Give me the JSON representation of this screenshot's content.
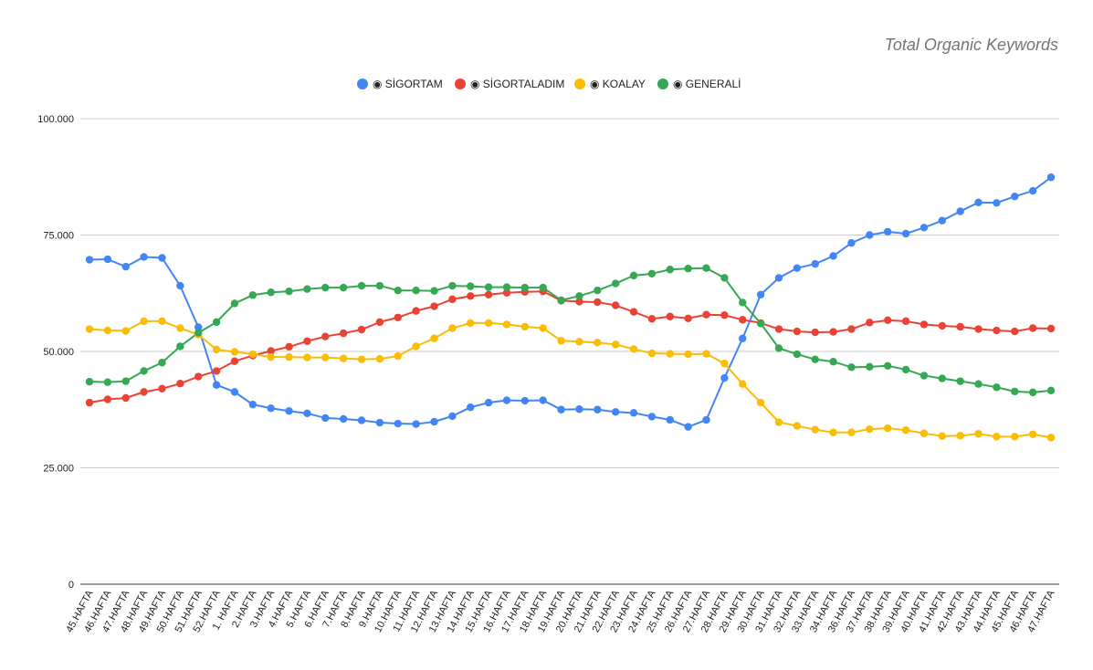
{
  "chart_data": {
    "type": "line",
    "title": "Total Organic Keywords",
    "xlabel": "",
    "ylabel": "",
    "ylim": [
      0,
      100000
    ],
    "y_ticks": [
      {
        "value": 0,
        "label": "0"
      },
      {
        "value": 25000,
        "label": "25.000"
      },
      {
        "value": 50000,
        "label": "50.000"
      },
      {
        "value": 75000,
        "label": "75.000"
      },
      {
        "value": 100000,
        "label": "100.000"
      }
    ],
    "grid": true,
    "legend_position": "top",
    "categories": [
      "45.HAFTA",
      "46.HAFTA",
      "47.HAFTA",
      "48.HAFTA",
      "49.HAFTA",
      "50.HAFTA",
      "51.HAFTA",
      "52.HAFTA",
      "1. HAFTA",
      "2.HAFTA",
      "3.HAFTA",
      "4.HAFTA",
      "5.HAFTA",
      "6.HAFTA",
      "7.HAFTA",
      "8.HAFTA",
      "9.HAFTA",
      "10.HAFTA",
      "11.HAFTA",
      "12.HAFTA",
      "13.HAFTA",
      "14.HAFTA",
      "15.HAFTA",
      "16.HAFTA",
      "17.HAFTA",
      "18.HAFTA",
      "19.HAFTA",
      "20.HAFTA",
      "21.HAFTA",
      "22.HAFTA",
      "23.HAFTA",
      "24.HAFTA",
      "25.HAFTA",
      "26.HAFTA",
      "27.HAFTA",
      "28.HAFTA",
      "29.HAFTA",
      "30.HAFTA",
      "31.HAFTA",
      "32.HAFTA",
      "33.HAFTA",
      "34.HAFTA",
      "36.HAFTA",
      "37.HAFTA",
      "38.HAFTA",
      "39.HAFTA",
      "40.HAFTA",
      "41.HAFTA",
      "42.HAFTA",
      "43.HAFTA",
      "44.HAFTA",
      "45.HAFTA",
      "46.HAFTA",
      "47.HAFTA"
    ],
    "series": [
      {
        "name": "◉ SİGORTAM",
        "color": "#4285f4",
        "values": [
          69700,
          69800,
          68200,
          70300,
          70100,
          64100,
          55200,
          42800,
          41300,
          38600,
          37800,
          37200,
          36700,
          35700,
          35500,
          35200,
          34700,
          34500,
          34400,
          34900,
          36100,
          38000,
          39000,
          39500,
          39400,
          39500,
          37500,
          37600,
          37500,
          37000,
          36800,
          36000,
          35300,
          33800,
          35300,
          44300,
          52800,
          62200,
          65800,
          67900,
          68800,
          70500,
          73300,
          75000,
          75700,
          75300,
          76600,
          78100,
          80100,
          82000,
          81900,
          83300,
          84500,
          87400
        ]
      },
      {
        "name": "◉ SİGORTALADIM",
        "color": "#ea4335",
        "values": [
          39000,
          39700,
          40000,
          41300,
          42000,
          43100,
          44600,
          45800,
          47900,
          49100,
          50100,
          51000,
          52200,
          53200,
          53900,
          54700,
          56300,
          57300,
          58700,
          59700,
          61200,
          61900,
          62200,
          62600,
          62800,
          62900,
          60900,
          60700,
          60600,
          59900,
          58500,
          57000,
          57500,
          57100,
          57900,
          57800,
          56800,
          56100,
          54800,
          54300,
          54100,
          54200,
          54800,
          56200,
          56700,
          56500,
          55800,
          55500,
          55300,
          54800,
          54500,
          54300,
          55000,
          54900
        ]
      },
      {
        "name": "◉ KOALAY",
        "color": "#fbbc04",
        "values": [
          54800,
          54500,
          54400,
          56500,
          56500,
          55000,
          53600,
          50400,
          49900,
          49400,
          48800,
          48800,
          48700,
          48700,
          48500,
          48300,
          48400,
          49000,
          51100,
          52800,
          55000,
          56100,
          56100,
          55800,
          55300,
          55000,
          52300,
          52100,
          51900,
          51500,
          50500,
          49600,
          49500,
          49400,
          49500,
          47400,
          43000,
          39000,
          34800,
          34000,
          33200,
          32600,
          32600,
          33300,
          33500,
          33100,
          32400,
          31800,
          31900,
          32300,
          31700,
          31700,
          32200,
          31500
        ]
      },
      {
        "name": "◉ GENERALİ",
        "color": "#34a853",
        "values": [
          43500,
          43400,
          43600,
          45800,
          47600,
          51100,
          54000,
          56300,
          60300,
          62100,
          62700,
          62900,
          63400,
          63700,
          63700,
          64100,
          64100,
          63100,
          63100,
          63000,
          64100,
          64000,
          63800,
          63800,
          63700,
          63700,
          61000,
          61900,
          63100,
          64600,
          66300,
          66700,
          67600,
          67800,
          67900,
          65800,
          60500,
          56000,
          50700,
          49400,
          48300,
          47800,
          46600,
          46700,
          46900,
          46100,
          44800,
          44200,
          43600,
          43000,
          42300,
          41400,
          41200,
          41600
        ]
      }
    ]
  }
}
